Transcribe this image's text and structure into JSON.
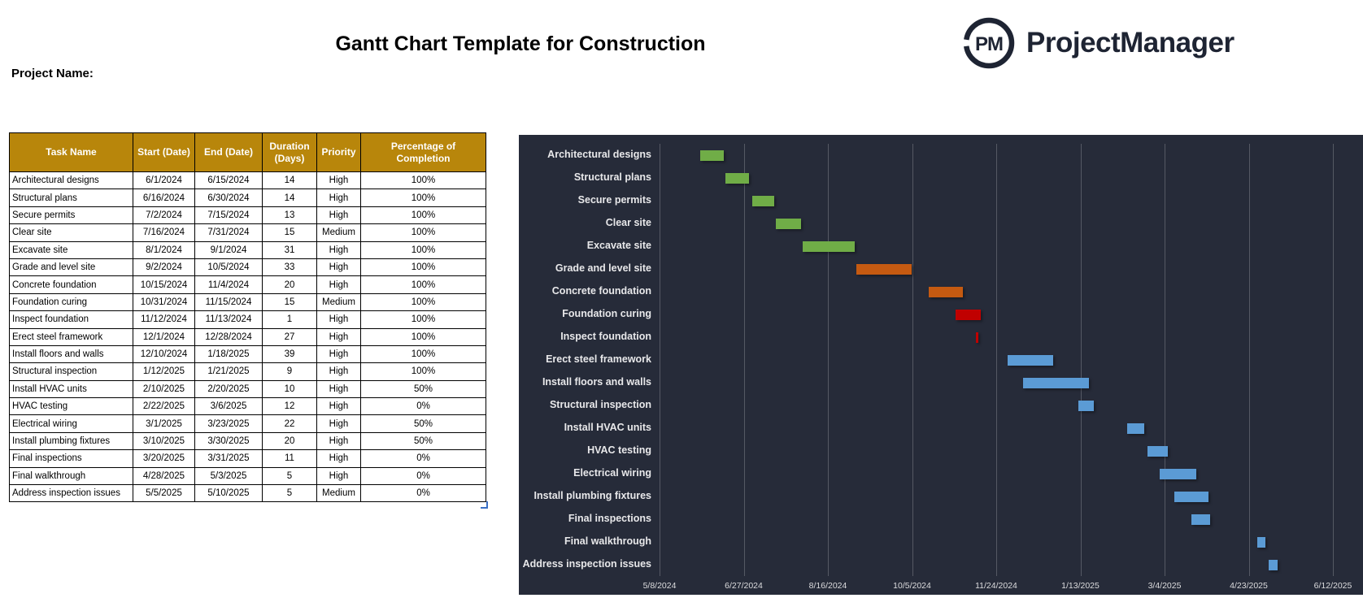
{
  "header": {
    "title": "Gantt Chart Template for Construction",
    "project_name_label": "Project Name:"
  },
  "logo": {
    "monogram": "PM",
    "brand": "ProjectManager",
    "color": "#1E2433"
  },
  "table": {
    "columns": [
      "Task Name",
      "Start  (Date)",
      "End  (Date)",
      "Duration (Days)",
      "Priority",
      "Percentage of Completion"
    ],
    "header_bg": "#B8860B",
    "header_text_color": "#FFFFFF"
  },
  "chart_data": {
    "type": "gantt",
    "background": "#262B39",
    "axis_start": "5/8/2024",
    "axis_end": "6/12/2025",
    "tick_dates": [
      "5/8/2024",
      "6/27/2024",
      "8/16/2024",
      "10/5/2024",
      "11/24/2024",
      "1/13/2025",
      "3/4/2025",
      "4/23/2025",
      "6/12/2025"
    ],
    "bar_colors": {
      "green": "#70AD47",
      "orange": "#C55A11",
      "red": "#C00000",
      "blue": "#5B9BD5"
    },
    "tasks": [
      {
        "name": "Architectural designs",
        "start": "6/1/2024",
        "end": "6/15/2024",
        "duration": 14,
        "priority": "High",
        "completion": "100%",
        "color": "green"
      },
      {
        "name": "Structural plans",
        "start": "6/16/2024",
        "end": "6/30/2024",
        "duration": 14,
        "priority": "High",
        "completion": "100%",
        "color": "green"
      },
      {
        "name": "Secure permits",
        "start": "7/2/2024",
        "end": "7/15/2024",
        "duration": 13,
        "priority": "High",
        "completion": "100%",
        "color": "green"
      },
      {
        "name": "Clear site",
        "start": "7/16/2024",
        "end": "7/31/2024",
        "duration": 15,
        "priority": "Medium",
        "completion": "100%",
        "color": "green"
      },
      {
        "name": "Excavate site",
        "start": "8/1/2024",
        "end": "9/1/2024",
        "duration": 31,
        "priority": "High",
        "completion": "100%",
        "color": "green"
      },
      {
        "name": "Grade and level site",
        "start": "9/2/2024",
        "end": "10/5/2024",
        "duration": 33,
        "priority": "High",
        "completion": "100%",
        "color": "orange"
      },
      {
        "name": "Concrete foundation",
        "start": "10/15/2024",
        "end": "11/4/2024",
        "duration": 20,
        "priority": "High",
        "completion": "100%",
        "color": "orange"
      },
      {
        "name": "Foundation curing",
        "start": "10/31/2024",
        "end": "11/15/2024",
        "duration": 15,
        "priority": "Medium",
        "completion": "100%",
        "color": "red"
      },
      {
        "name": "Inspect foundation",
        "start": "11/12/2024",
        "end": "11/13/2024",
        "duration": 1,
        "priority": "High",
        "completion": "100%",
        "color": "red"
      },
      {
        "name": "Erect steel framework",
        "start": "12/1/2024",
        "end": "12/28/2024",
        "duration": 27,
        "priority": "High",
        "completion": "100%",
        "color": "blue"
      },
      {
        "name": "Install floors and walls",
        "start": "12/10/2024",
        "end": "1/18/2025",
        "duration": 39,
        "priority": "High",
        "completion": "100%",
        "color": "blue"
      },
      {
        "name": "Structural inspection",
        "start": "1/12/2025",
        "end": "1/21/2025",
        "duration": 9,
        "priority": "High",
        "completion": "100%",
        "color": "blue"
      },
      {
        "name": "Install HVAC units",
        "start": "2/10/2025",
        "end": "2/20/2025",
        "duration": 10,
        "priority": "High",
        "completion": "50%",
        "color": "blue"
      },
      {
        "name": "HVAC testing",
        "start": "2/22/2025",
        "end": "3/6/2025",
        "duration": 12,
        "priority": "High",
        "completion": "0%",
        "color": "blue"
      },
      {
        "name": "Electrical wiring",
        "start": "3/1/2025",
        "end": "3/23/2025",
        "duration": 22,
        "priority": "High",
        "completion": "50%",
        "color": "blue"
      },
      {
        "name": "Install plumbing fixtures",
        "start": "3/10/2025",
        "end": "3/30/2025",
        "duration": 20,
        "priority": "High",
        "completion": "50%",
        "color": "blue"
      },
      {
        "name": "Final inspections",
        "start": "3/20/2025",
        "end": "3/31/2025",
        "duration": 11,
        "priority": "High",
        "completion": "0%",
        "color": "blue"
      },
      {
        "name": "Final walkthrough",
        "start": "4/28/2025",
        "end": "5/3/2025",
        "duration": 5,
        "priority": "High",
        "completion": "0%",
        "color": "blue"
      },
      {
        "name": "Address inspection issues",
        "start": "5/5/2025",
        "end": "5/10/2025",
        "duration": 5,
        "priority": "Medium",
        "completion": "0%",
        "color": "blue"
      }
    ]
  }
}
